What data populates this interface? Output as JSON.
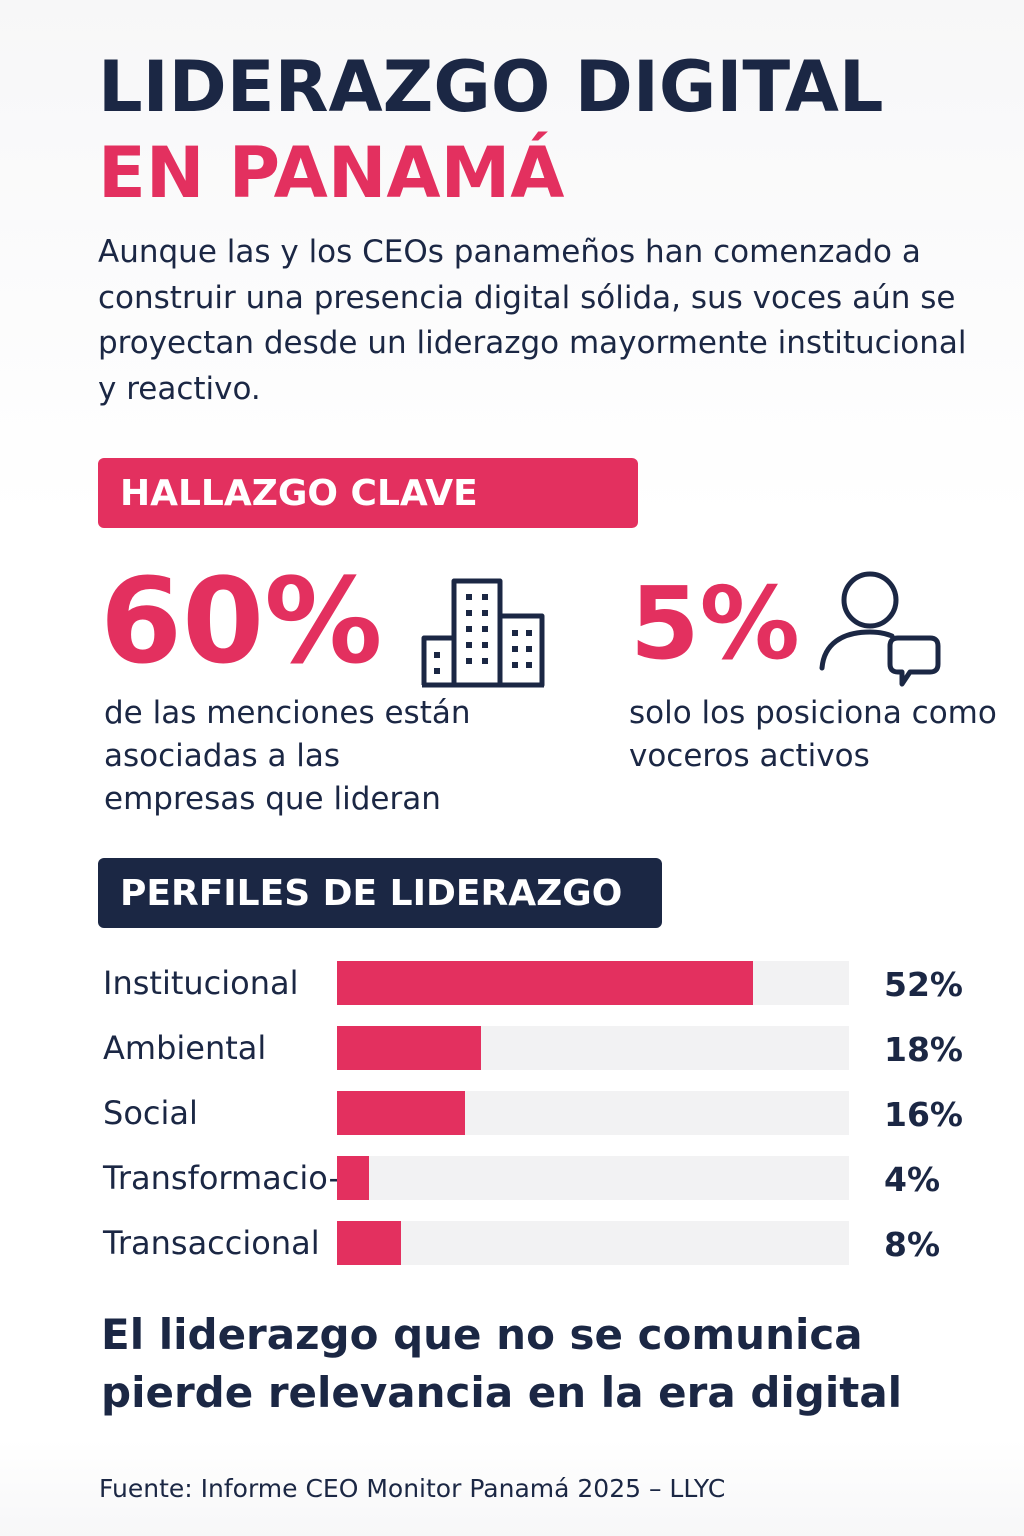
{
  "header": {
    "title_line1": "LIDERAZGO DIGITAL",
    "title_line2": "EN PANAMÁ",
    "intro": "Aunque las y los CEOs panameños han comenzado a construir una presencia digital sólida, sus voces aún se proyectan desde un liderazgo mayormente institucional y reactivo."
  },
  "key_finding": {
    "banner": "HALLAZGO CLAVE",
    "stats": [
      {
        "value": "60%",
        "description": "de las menciones están asociadas a las empresas que lideran",
        "icon": "buildings-icon"
      },
      {
        "value": "5%",
        "description": "solo los posiciona como voceros activos",
        "icon": "person-chat-icon"
      }
    ]
  },
  "profiles": {
    "banner": "PERFILES DE LIDERAZGO"
  },
  "chart_data": {
    "type": "bar",
    "orientation": "horizontal",
    "categories": [
      "Institucional",
      "Ambiental",
      "Social",
      "Transformacio-",
      "Transaccional"
    ],
    "values": [
      52,
      18,
      16,
      4,
      8
    ],
    "value_labels": [
      "52%",
      "18%",
      "16%",
      "4%",
      "8%"
    ],
    "xlim": [
      0,
      64
    ],
    "grid": false
  },
  "closing": "El liderazgo que no se comunica pierde relevancia en la era digital",
  "source": "Fuente: Informe CEO Monitor Panamá 2025 – LLYC",
  "colors": {
    "accent": "#e3305f",
    "navy": "#1b2744",
    "track": "#f2f2f3"
  }
}
